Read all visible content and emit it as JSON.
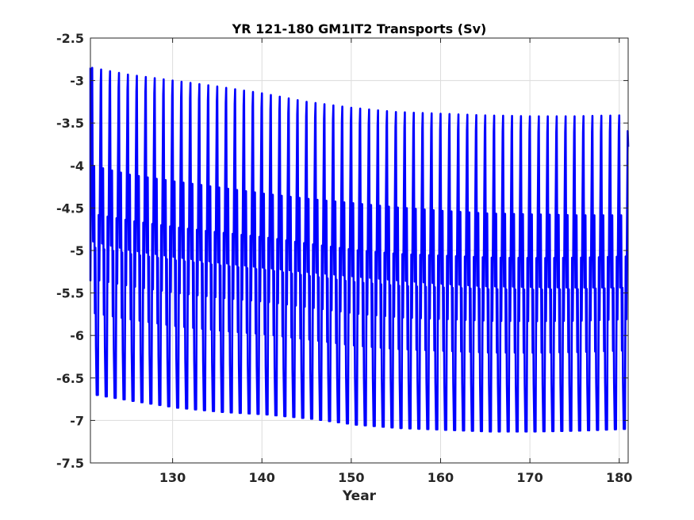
{
  "chart_data": {
    "type": "line",
    "title": "YR 121-180 GM1IT2 Transports (Sv)",
    "xlabel": "Year",
    "ylabel": "",
    "xlim": [
      120.8,
      181.0
    ],
    "ylim": [
      -7.5,
      -2.5
    ],
    "xticks": [
      130,
      140,
      150,
      160,
      170,
      180
    ],
    "xtick_labels": [
      "130",
      "140",
      "150",
      "160",
      "170",
      "180"
    ],
    "yticks": [
      -2.5,
      -3,
      -3.5,
      -4,
      -4.5,
      -5,
      -5.5,
      -6,
      -6.5,
      -7,
      -7.5
    ],
    "ytick_labels": [
      "-2.5",
      "-3",
      "-3.5",
      "-4",
      "-4.5",
      "-5",
      "-5.5",
      "-6",
      "-6.5",
      "-7",
      "-7.5"
    ],
    "grid": true,
    "legend": "none",
    "series": [
      {
        "name": "",
        "color": "#0000ff",
        "cycle_period_years": 1,
        "start_year": 120.8,
        "end_year": 181.0,
        "annual_max_by_year": [
          [
            121,
            -2.85
          ],
          [
            125,
            -2.93
          ],
          [
            130,
            -3.0
          ],
          [
            135,
            -3.07
          ],
          [
            140,
            -3.15
          ],
          [
            145,
            -3.25
          ],
          [
            150,
            -3.32
          ],
          [
            155,
            -3.37
          ],
          [
            160,
            -3.39
          ],
          [
            165,
            -3.41
          ],
          [
            170,
            -3.42
          ],
          [
            175,
            -3.42
          ],
          [
            180,
            -3.41
          ]
        ],
        "annual_min_by_year": [
          [
            121,
            -6.7
          ],
          [
            125,
            -6.77
          ],
          [
            130,
            -6.85
          ],
          [
            135,
            -6.9
          ],
          [
            140,
            -6.93
          ],
          [
            145,
            -6.98
          ],
          [
            150,
            -7.05
          ],
          [
            155,
            -7.09
          ],
          [
            160,
            -7.11
          ],
          [
            165,
            -7.13
          ],
          [
            170,
            -7.13
          ],
          [
            175,
            -7.12
          ],
          [
            180,
            -7.1
          ]
        ],
        "secondary_peak_by_year": [
          [
            121,
            -4.2
          ],
          [
            125,
            -4.3
          ],
          [
            130,
            -4.38
          ],
          [
            135,
            -4.45
          ],
          [
            140,
            -4.52
          ],
          [
            145,
            -4.58
          ],
          [
            150,
            -4.63
          ],
          [
            155,
            -4.68
          ],
          [
            160,
            -4.72
          ],
          [
            165,
            -4.75
          ],
          [
            170,
            -4.76
          ],
          [
            175,
            -4.77
          ],
          [
            180,
            -4.77
          ]
        ],
        "end_value": -3.78
      }
    ]
  }
}
